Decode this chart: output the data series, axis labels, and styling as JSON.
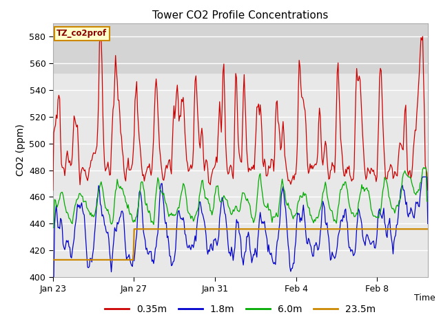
{
  "title": "Tower CO2 Profile Concentrations",
  "xlabel": "Time",
  "ylabel": "CO2 (ppm)",
  "ylim": [
    400,
    590
  ],
  "yticks": [
    400,
    420,
    440,
    460,
    480,
    500,
    520,
    540,
    560,
    580
  ],
  "legend_label": "TZ_co2prof",
  "series_labels": [
    "0.35m",
    "1.8m",
    "6.0m",
    "23.5m"
  ],
  "series_colors": [
    "#cc0000",
    "#0000cc",
    "#00aa00",
    "#cc8800"
  ],
  "background_color": "#ffffff",
  "plot_bg_color": "#e8e8e8",
  "band_color": "#d4d4d4",
  "band_y1": 553,
  "band_y2": 590,
  "x_tick_labels": [
    "Jan 23",
    "Jan 27",
    "Jan 31",
    "Feb 4",
    "Feb 8"
  ],
  "x_tick_positions": [
    0,
    4,
    8,
    12,
    16
  ],
  "total_days": 18.5,
  "seed": 123
}
